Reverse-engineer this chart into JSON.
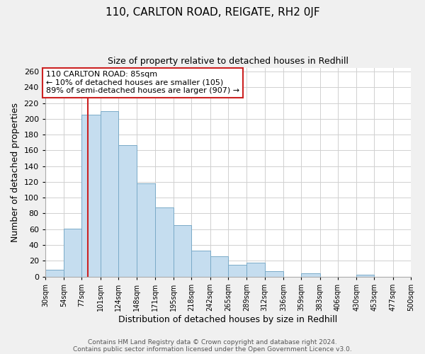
{
  "title": "110, CARLTON ROAD, REIGATE, RH2 0JF",
  "subtitle": "Size of property relative to detached houses in Redhill",
  "xlabel": "Distribution of detached houses by size in Redhill",
  "ylabel": "Number of detached properties",
  "bar_color": "#c5ddef",
  "bar_edge_color": "#7aaac8",
  "bin_edges": [
    30,
    54,
    77,
    101,
    124,
    148,
    171,
    195,
    218,
    242,
    265,
    289,
    312,
    336,
    359,
    383,
    406,
    430,
    453,
    477,
    500
  ],
  "bin_labels": [
    "30sqm",
    "54sqm",
    "77sqm",
    "101sqm",
    "124sqm",
    "148sqm",
    "171sqm",
    "195sqm",
    "218sqm",
    "242sqm",
    "265sqm",
    "289sqm",
    "312sqm",
    "336sqm",
    "359sqm",
    "383sqm",
    "406sqm",
    "430sqm",
    "453sqm",
    "477sqm",
    "500sqm"
  ],
  "counts": [
    9,
    61,
    205,
    210,
    167,
    118,
    88,
    65,
    33,
    26,
    15,
    18,
    7,
    0,
    4,
    0,
    0,
    2,
    0,
    0
  ],
  "property_line_x": 85,
  "annotation_title": "110 CARLTON ROAD: 85sqm",
  "annotation_line1": "← 10% of detached houses are smaller (105)",
  "annotation_line2": "89% of semi-detached houses are larger (907) →",
  "footnote1": "Contains HM Land Registry data © Crown copyright and database right 2024.",
  "footnote2": "Contains public sector information licensed under the Open Government Licence v3.0.",
  "ylim": [
    0,
    265
  ],
  "yticks": [
    0,
    20,
    40,
    60,
    80,
    100,
    120,
    140,
    160,
    180,
    200,
    220,
    240,
    260
  ],
  "background_color": "#f0f0f0",
  "plot_background": "#ffffff",
  "grid_color": "#d0d0d0",
  "annotation_box_color": "#ffffff",
  "annotation_box_edge": "#cc2222",
  "property_line_color": "#cc2222"
}
